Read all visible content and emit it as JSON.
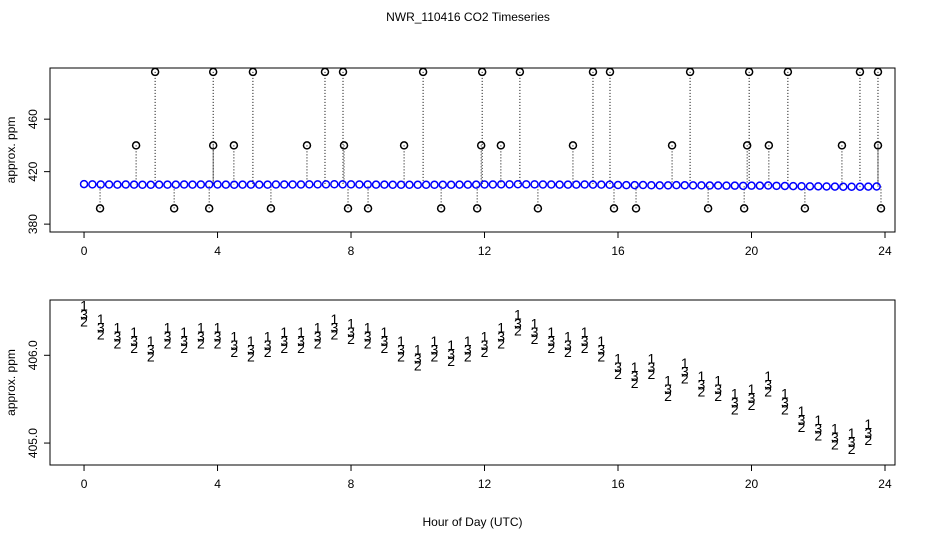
{
  "chart_data": [
    {
      "type": "scatter",
      "title": "NWR_110416  CO2 Timeseries",
      "ylabel": "approx. ppm",
      "xlim": [
        -1.02,
        24.3
      ],
      "ylim": [
        374,
        499
      ],
      "xticks": [
        0,
        4,
        8,
        12,
        16,
        20,
        24
      ],
      "yticks": [
        380,
        420,
        460
      ],
      "color": "#0000ff",
      "x": [
        0,
        0.25,
        0.5,
        0.75,
        1,
        1.25,
        1.5,
        1.75,
        2,
        2.25,
        2.5,
        2.75,
        3,
        3.25,
        3.5,
        3.75,
        4,
        4.25,
        4.5,
        4.75,
        5,
        5.25,
        5.5,
        5.75,
        6,
        6.25,
        6.5,
        6.75,
        7,
        7.25,
        7.5,
        7.75,
        8,
        8.25,
        8.5,
        8.75,
        9,
        9.25,
        9.5,
        9.75,
        10,
        10.25,
        10.5,
        10.75,
        11,
        11.25,
        11.5,
        11.75,
        12,
        12.25,
        12.5,
        12.75,
        13,
        13.25,
        13.5,
        13.75,
        14,
        14.25,
        14.5,
        14.75,
        15,
        15.25,
        15.5,
        15.75,
        16,
        16.25,
        16.5,
        16.75,
        17,
        17.25,
        17.5,
        17.75,
        18,
        18.25,
        18.5,
        18.75,
        19,
        19.25,
        19.5,
        19.75,
        20,
        20.25,
        20.5,
        20.75,
        21,
        21.25,
        21.5,
        21.75,
        22,
        22.25,
        22.5,
        22.75,
        23,
        23.25,
        23.5,
        23.75
      ],
      "values": [
        410.5,
        410.3,
        410.2,
        410.2,
        410.1,
        410.2,
        410.1,
        410.0,
        410.0,
        410.1,
        410.1,
        410.1,
        410.2,
        410.1,
        410.2,
        410.2,
        410.2,
        410.1,
        410.0,
        410.1,
        410.1,
        410.1,
        410.1,
        410.2,
        410.2,
        410.2,
        410.2,
        410.3,
        410.3,
        410.3,
        410.4,
        410.3,
        410.3,
        410.2,
        410.2,
        410.1,
        410.1,
        410.0,
        410.0,
        410.0,
        410.0,
        410.0,
        410.0,
        410.0,
        410.0,
        410.1,
        410.1,
        410.1,
        410.2,
        410.2,
        410.3,
        410.3,
        410.4,
        410.3,
        410.3,
        410.2,
        410.2,
        410.1,
        410.1,
        410.1,
        410.2,
        410.1,
        410.1,
        410.0,
        409.8,
        409.7,
        409.7,
        409.8,
        409.6,
        409.5,
        409.5,
        409.7,
        409.6,
        409.5,
        409.5,
        409.4,
        409.4,
        409.3,
        409.3,
        409.2,
        409.3,
        409.3,
        409.4,
        409.2,
        409.1,
        409.0,
        408.9,
        408.8,
        408.8,
        408.7,
        408.6,
        408.5,
        408.5,
        408.5,
        408.6,
        408.7
      ],
      "spikes": {
        "color": "#000000",
        "x": [
          2.13,
          3.87,
          5.06,
          7.22,
          7.76,
          10.16,
          11.93,
          13.06,
          15.25,
          15.76,
          18.16,
          19.93,
          21.09,
          23.25,
          23.79,
          1.56,
          3.87,
          4.49,
          6.68,
          7.79,
          9.59,
          11.9,
          12.49,
          14.65,
          17.62,
          19.87,
          20.52,
          22.71,
          23.79,
          0.48,
          2.7,
          3.75,
          5.6,
          7.91,
          8.51,
          10.7,
          11.78,
          13.6,
          15.88,
          16.54,
          18.7,
          19.78,
          21.6,
          23.88
        ],
        "values": [
          496,
          496,
          496,
          496,
          496,
          496,
          496,
          496,
          496,
          496,
          496,
          496,
          496,
          496,
          496,
          440,
          440,
          440,
          440,
          440,
          440,
          440,
          440,
          440,
          440,
          440,
          440,
          440,
          440,
          392,
          392,
          392,
          392,
          392,
          392,
          392,
          392,
          392,
          392,
          392,
          392,
          392,
          392,
          392
        ]
      }
    },
    {
      "type": "scatter",
      "ylabel": "approx. ppm",
      "xlabel": "Hour of Day (UTC)",
      "xlim": [
        -1.02,
        24.3
      ],
      "ylim": [
        404.75,
        406.63
      ],
      "xticks": [
        0,
        4,
        8,
        12,
        16,
        20,
        24
      ],
      "yticks": [
        {
          "value": 405,
          "label": "405.0"
        },
        {
          "value": 406,
          "label": "406.0"
        }
      ],
      "x": [
        0,
        0.5,
        1,
        1.5,
        2,
        2.5,
        3,
        3.5,
        4,
        4.5,
        5,
        5.5,
        6,
        6.5,
        7,
        7.5,
        8,
        8.5,
        9,
        9.5,
        10,
        10.5,
        11,
        11.5,
        12,
        12.5,
        13,
        13.5,
        14,
        14.5,
        15,
        15.5,
        16,
        16.5,
        17,
        17.5,
        18,
        18.5,
        19,
        19.5,
        20,
        20.5,
        21,
        21.5,
        22,
        22.5,
        23,
        23.5
      ],
      "series": [
        {
          "name": "1",
          "color": "#dd0000",
          "values": [
            406.55,
            406.4,
            406.3,
            406.25,
            406.15,
            406.3,
            406.25,
            406.3,
            406.3,
            406.2,
            406.15,
            406.2,
            406.25,
            406.25,
            406.3,
            406.4,
            406.35,
            406.3,
            406.25,
            406.15,
            406.05,
            406.15,
            406.1,
            406.15,
            406.2,
            406.3,
            406.45,
            406.35,
            406.25,
            406.2,
            406.25,
            406.15,
            405.95,
            405.85,
            405.95,
            405.7,
            405.9,
            405.75,
            405.7,
            405.55,
            405.6,
            405.75,
            405.55,
            405.35,
            405.25,
            405.15,
            405.1,
            405.2
          ]
        },
        {
          "name": "2",
          "color": "#00aa00",
          "values": [
            406.37,
            406.22,
            406.12,
            406.07,
            405.97,
            406.12,
            406.07,
            406.12,
            406.12,
            406.02,
            405.97,
            406.02,
            406.07,
            406.07,
            406.12,
            406.22,
            406.17,
            406.12,
            406.07,
            405.97,
            405.87,
            405.97,
            405.92,
            405.97,
            406.02,
            406.12,
            406.27,
            406.17,
            406.07,
            406.02,
            406.07,
            405.97,
            405.77,
            405.67,
            405.77,
            405.52,
            405.72,
            405.57,
            405.52,
            405.37,
            405.42,
            405.57,
            405.37,
            405.17,
            405.07,
            404.97,
            404.92,
            405.02
          ]
        },
        {
          "name": "3",
          "color": "#0000cc",
          "values": [
            406.45,
            406.3,
            406.2,
            406.15,
            406.05,
            406.2,
            406.15,
            406.2,
            406.2,
            406.1,
            406.05,
            406.1,
            406.15,
            406.15,
            406.2,
            406.3,
            406.25,
            406.2,
            406.15,
            406.05,
            405.95,
            406.05,
            406.0,
            406.05,
            406.1,
            406.2,
            406.35,
            406.25,
            406.15,
            406.1,
            406.15,
            406.05,
            405.85,
            405.75,
            405.85,
            405.6,
            405.8,
            405.65,
            405.6,
            405.45,
            405.5,
            405.65,
            405.45,
            405.25,
            405.15,
            405.05,
            405.0,
            405.1
          ]
        }
      ]
    }
  ]
}
